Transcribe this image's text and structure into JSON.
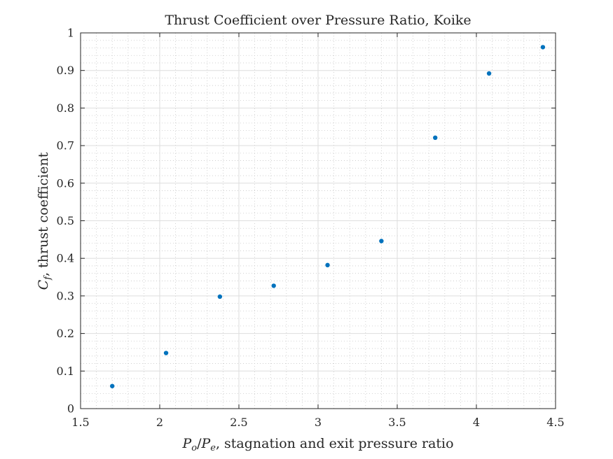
{
  "chart_data": {
    "type": "scatter",
    "title": "Thrust Coefficient over Pressure Ratio, Koike",
    "xlabel": {
      "main_1": "P",
      "sub_1": "o",
      "slash": "/",
      "main_2": "P",
      "sub_2": "e",
      "rest": ", stagnation and exit pressure ratio"
    },
    "ylabel": {
      "main": "C",
      "sub": "f",
      "rest": ", thrust coefficient"
    },
    "xlim": [
      1.5,
      4.5
    ],
    "ylim": [
      0,
      1
    ],
    "xticks": [
      "1.5",
      "2",
      "2.5",
      "3",
      "3.5",
      "4",
      "4.5"
    ],
    "yticks": [
      "0",
      "0.1",
      "0.2",
      "0.3",
      "0.4",
      "0.5",
      "0.6",
      "0.7",
      "0.8",
      "0.9",
      "1"
    ],
    "grid": true,
    "minor_grid": true,
    "marker_color": "#0072BD",
    "x": [
      1.7,
      2.04,
      2.38,
      2.72,
      3.06,
      3.4,
      3.74,
      4.08,
      4.42
    ],
    "y": [
      0.06,
      0.148,
      0.298,
      0.327,
      0.382,
      0.446,
      0.721,
      0.892,
      0.962
    ]
  }
}
